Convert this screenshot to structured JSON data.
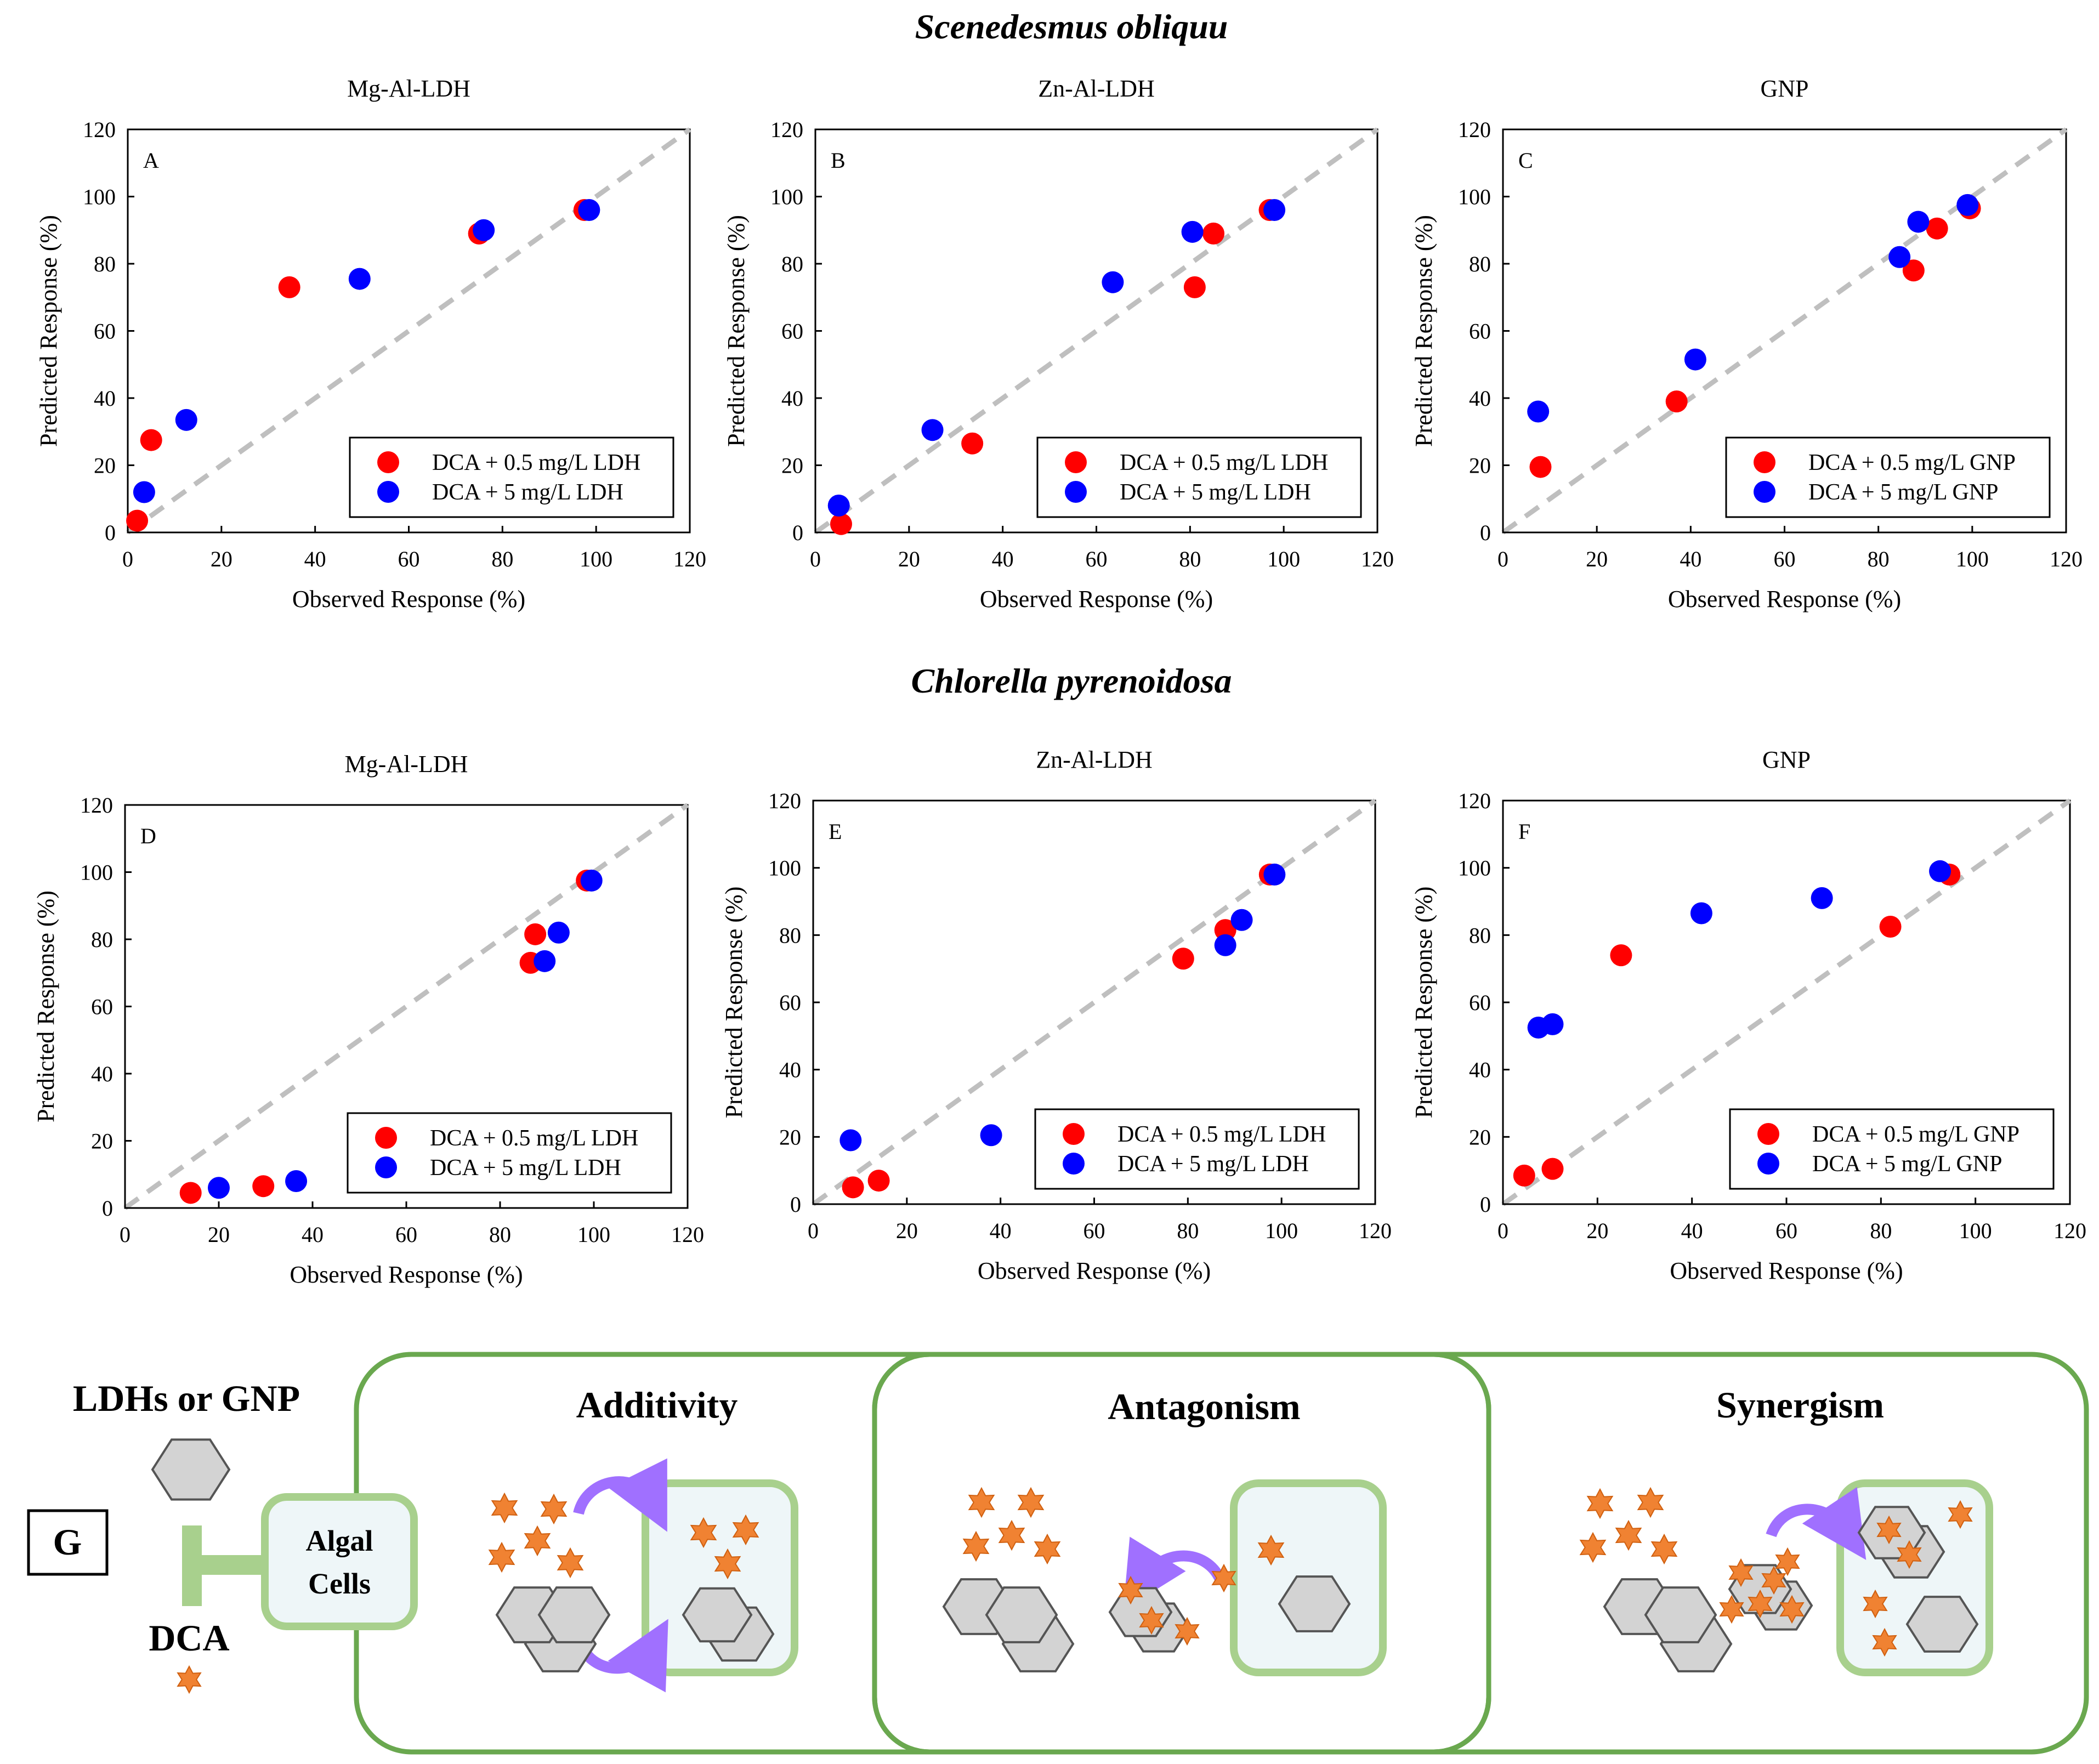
{
  "figure": {
    "row1_title": "Scenedesmus obliquu",
    "row2_title": "Chlorella pyrenoidosa"
  },
  "colors": {
    "series1": "#ff0000",
    "series2": "#0000ff",
    "diagonal": "#bfbfbf",
    "green_border": "#6aa84f",
    "light_green": "#a8d08d",
    "box_fill": "#eef6f8",
    "star": "#f08232",
    "arrow": "#a070ff",
    "hex_fill": "#d3d3d3"
  },
  "chart_data": [
    {
      "id": "A",
      "type": "scatter",
      "title": "Mg-Al-LDH",
      "panel_label": "A",
      "xlabel": "Observed Response (%)",
      "ylabel": "Predicted Response (%)",
      "xlim": [
        0,
        120
      ],
      "ylim": [
        0,
        120
      ],
      "xticks": [
        "0",
        "20",
        "40",
        "60",
        "80",
        "100",
        "120"
      ],
      "yticks": [
        "0",
        "20",
        "40",
        "60",
        "80",
        "100",
        "120"
      ],
      "reference_line": "y = x",
      "series": [
        {
          "name": "DCA + 0.5 mg/L LDH",
          "color": "#ff0000",
          "points": [
            [
              2,
              3.5
            ],
            [
              5,
              27.5
            ],
            [
              34.5,
              73
            ],
            [
              75,
              89
            ],
            [
              97.5,
              96
            ]
          ]
        },
        {
          "name": "DCA + 5 mg/L LDH",
          "color": "#0000ff",
          "points": [
            [
              3.5,
              12
            ],
            [
              12.5,
              33.5
            ],
            [
              49.5,
              75.5
            ],
            [
              76,
              90
            ],
            [
              98.5,
              96
            ]
          ]
        }
      ]
    },
    {
      "id": "B",
      "type": "scatter",
      "title": "Zn-Al-LDH",
      "panel_label": "B",
      "xlabel": "Observed Response (%)",
      "ylabel": "Predicted Response (%)",
      "xlim": [
        0,
        120
      ],
      "ylim": [
        0,
        120
      ],
      "xticks": [
        "0",
        "20",
        "40",
        "60",
        "80",
        "100",
        "120"
      ],
      "yticks": [
        "0",
        "20",
        "40",
        "60",
        "80",
        "100",
        "120"
      ],
      "reference_line": "y = x",
      "series": [
        {
          "name": "DCA + 0.5 mg/L LDH",
          "color": "#ff0000",
          "points": [
            [
              5.5,
              2.5
            ],
            [
              33.5,
              26.5
            ],
            [
              81,
              73
            ],
            [
              85,
              89
            ],
            [
              97,
              96
            ]
          ]
        },
        {
          "name": "DCA + 5 mg/L LDH",
          "color": "#0000ff",
          "points": [
            [
              5,
              8
            ],
            [
              25,
              30.5
            ],
            [
              63.5,
              74.5
            ],
            [
              80.5,
              89.5
            ],
            [
              98,
              96
            ]
          ]
        }
      ]
    },
    {
      "id": "C",
      "type": "scatter",
      "title": "GNP",
      "panel_label": "C",
      "xlabel": "Observed Response (%)",
      "ylabel": "Predicted Response (%)",
      "xlim": [
        0,
        120
      ],
      "ylim": [
        0,
        120
      ],
      "xticks": [
        "0",
        "20",
        "40",
        "60",
        "80",
        "100",
        "120"
      ],
      "yticks": [
        "0",
        "20",
        "40",
        "60",
        "80",
        "100",
        "120"
      ],
      "reference_line": "y = x",
      "series": [
        {
          "name": "DCA + 0.5 mg/L GNP",
          "color": "#ff0000",
          "points": [
            [
              8,
              19.5
            ],
            [
              37,
              39
            ],
            [
              87.5,
              78
            ],
            [
              92.5,
              90.5
            ],
            [
              99.5,
              96.5
            ]
          ]
        },
        {
          "name": "DCA + 5 mg/L GNP",
          "color": "#0000ff",
          "points": [
            [
              7.5,
              36
            ],
            [
              41,
              51.5
            ],
            [
              84.5,
              82
            ],
            [
              88.5,
              92.5
            ],
            [
              99,
              97.5
            ]
          ]
        }
      ]
    },
    {
      "id": "D",
      "type": "scatter",
      "title": "Mg-Al-LDH",
      "panel_label": "D",
      "xlabel": "Observed Response (%)",
      "ylabel": "Predicted Response (%)",
      "xlim": [
        0,
        120
      ],
      "ylim": [
        0,
        120
      ],
      "xticks": [
        "0",
        "20",
        "40",
        "60",
        "80",
        "100",
        "120"
      ],
      "yticks": [
        "0",
        "20",
        "40",
        "60",
        "80",
        "100",
        "120"
      ],
      "reference_line": "y = x",
      "series": [
        {
          "name": "DCA + 0.5 mg/L LDH",
          "color": "#ff0000",
          "points": [
            [
              14,
              4.5
            ],
            [
              29.5,
              6.5
            ],
            [
              86.5,
              73
            ],
            [
              87.5,
              81.5
            ],
            [
              98.5,
              97.5
            ]
          ]
        },
        {
          "name": "DCA + 5 mg/L LDH",
          "color": "#0000ff",
          "points": [
            [
              20,
              6
            ],
            [
              36.5,
              8
            ],
            [
              89.5,
              73.5
            ],
            [
              92.5,
              82
            ],
            [
              99.5,
              97.5
            ]
          ]
        }
      ]
    },
    {
      "id": "E",
      "type": "scatter",
      "title": "Zn-Al-LDH",
      "panel_label": "E",
      "xlabel": "Observed Response (%)",
      "ylabel": "Predicted Response (%)",
      "xlim": [
        0,
        120
      ],
      "ylim": [
        0,
        120
      ],
      "xticks": [
        "0",
        "20",
        "40",
        "60",
        "80",
        "100",
        "120"
      ],
      "yticks": [
        "0",
        "20",
        "40",
        "60",
        "80",
        "100",
        "120"
      ],
      "reference_line": "y = x",
      "series": [
        {
          "name": "DCA + 0.5 mg/L LDH",
          "color": "#ff0000",
          "points": [
            [
              8.5,
              5
            ],
            [
              14,
              7
            ],
            [
              79,
              73
            ],
            [
              88,
              81.5
            ],
            [
              97.5,
              98
            ]
          ]
        },
        {
          "name": "DCA + 5 mg/L LDH",
          "color": "#0000ff",
          "points": [
            [
              8,
              19
            ],
            [
              38,
              20.5
            ],
            [
              88,
              77
            ],
            [
              91.5,
              84.5
            ],
            [
              98.5,
              98
            ]
          ]
        }
      ]
    },
    {
      "id": "F",
      "type": "scatter",
      "title": "GNP",
      "panel_label": "F",
      "xlabel": "Observed Response (%)",
      "ylabel": "Predicted Response (%)",
      "xlim": [
        0,
        120
      ],
      "ylim": [
        0,
        120
      ],
      "xticks": [
        "0",
        "20",
        "40",
        "60",
        "80",
        "100",
        "120"
      ],
      "yticks": [
        "0",
        "20",
        "40",
        "60",
        "80",
        "100",
        "120"
      ],
      "reference_line": "y = x",
      "series": [
        {
          "name": "DCA + 0.5 mg/L GNP",
          "color": "#ff0000",
          "points": [
            [
              4.5,
              8.5
            ],
            [
              10.5,
              10.5
            ],
            [
              25,
              74
            ],
            [
              82,
              82.5
            ],
            [
              94.5,
              98
            ]
          ]
        },
        {
          "name": "DCA + 5 mg/L GNP",
          "color": "#0000ff",
          "points": [
            [
              7.5,
              52.5
            ],
            [
              10.5,
              53.5
            ],
            [
              42,
              86.5
            ],
            [
              67.5,
              91
            ],
            [
              92.5,
              99
            ]
          ]
        }
      ]
    }
  ],
  "schematic": {
    "label": "G",
    "ldh_label": "LDHs or GNP",
    "algal_cells_line1": "Algal",
    "algal_cells_line2": "Cells",
    "dca_label": "DCA",
    "additivity": "Additivity",
    "antagonism": "Antagonism",
    "synergism": "Synergism"
  }
}
